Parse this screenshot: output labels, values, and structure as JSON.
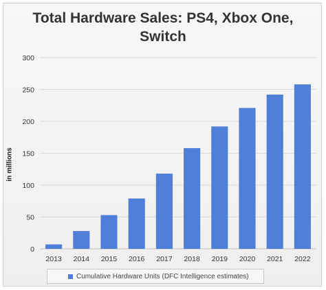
{
  "chart_data": {
    "type": "bar",
    "title_line1": "Total Hardware Sales: PS4, Xbox One,",
    "title_line2": "Switch",
    "ylabel": "in millions",
    "xlabel": "",
    "categories": [
      "2013",
      "2014",
      "2015",
      "2016",
      "2017",
      "2018",
      "2019",
      "2020",
      "2021",
      "2022"
    ],
    "series": [
      {
        "name": "Cumulative Hardware Units (DFC Intelligence estimates)",
        "values": [
          7,
          28,
          53,
          79,
          118,
          158,
          192,
          221,
          242,
          258
        ],
        "color": "#4f7fd6"
      }
    ],
    "ylim": [
      0,
      300
    ],
    "yticks": [
      "0",
      "50",
      "100",
      "150",
      "200",
      "250",
      "300"
    ],
    "grid": true,
    "legend_position": "bottom"
  }
}
